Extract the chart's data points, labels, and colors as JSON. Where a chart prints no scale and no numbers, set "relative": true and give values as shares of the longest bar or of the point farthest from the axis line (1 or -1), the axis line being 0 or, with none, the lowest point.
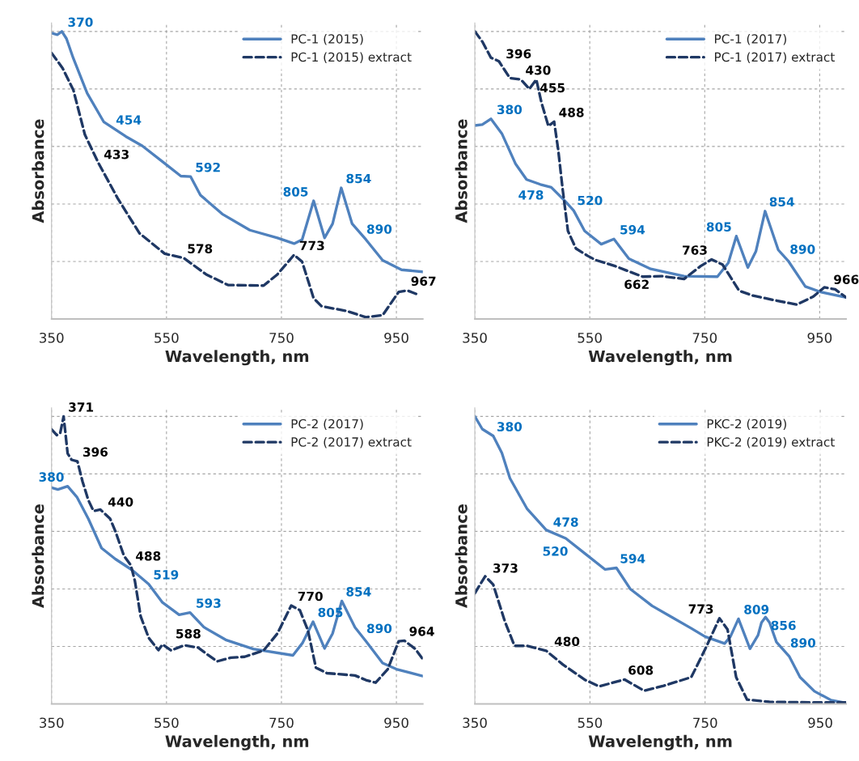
{
  "chart_data": [
    {
      "type": "line",
      "relative": true,
      "xlabel": "Wavelength, nm",
      "ylabel": "Absorbance",
      "xlim": [
        350,
        996
      ],
      "xticks": [
        350,
        550,
        750,
        950
      ],
      "grid": true,
      "legend": "top right",
      "series": [
        {
          "name": "PC-1 (2015)",
          "color": "#4f81bd",
          "line_style": "solid",
          "x": [
            350,
            360,
            368,
            376,
            388,
            412,
            441,
            479,
            508,
            547,
            575,
            592,
            609,
            647,
            695,
            743,
            772,
            786,
            806,
            825,
            839,
            854,
            873,
            897,
            926,
            959,
            996
          ],
          "values": [
            0.994,
            0.989,
            1.0,
            0.975,
            0.906,
            0.785,
            0.685,
            0.635,
            0.602,
            0.541,
            0.497,
            0.495,
            0.431,
            0.365,
            0.309,
            0.282,
            0.262,
            0.276,
            0.411,
            0.282,
            0.331,
            0.456,
            0.331,
            0.276,
            0.204,
            0.171,
            0.164
          ]
        },
        {
          "name": "PC-1 (2015) extract",
          "color": "#1f3864",
          "line_style": "dashed",
          "x": [
            350,
            369,
            388,
            408,
            432,
            465,
            503,
            547,
            580,
            619,
            657,
            719,
            743,
            772,
            786,
            806,
            820,
            863,
            897,
            926,
            954,
            969,
            990
          ],
          "values": [
            0.925,
            0.873,
            0.796,
            0.641,
            0.541,
            0.42,
            0.298,
            0.227,
            0.212,
            0.155,
            0.118,
            0.116,
            0.155,
            0.223,
            0.199,
            0.072,
            0.044,
            0.028,
            0.006,
            0.013,
            0.094,
            0.099,
            0.083
          ]
        }
      ],
      "annotations": [
        {
          "text": "370",
          "x": 370,
          "y": 1.0
        },
        {
          "text": "454",
          "x": 454,
          "y": 0.66
        },
        {
          "text": "592",
          "x": 592,
          "y": 0.495
        },
        {
          "text": "805",
          "x": 805,
          "y": 0.41
        },
        {
          "text": "854",
          "x": 854,
          "y": 0.456
        },
        {
          "text": "890",
          "x": 890,
          "y": 0.28
        },
        {
          "text": "433",
          "x": 433,
          "y": 0.54
        },
        {
          "text": "578",
          "x": 578,
          "y": 0.212
        },
        {
          "text": "773",
          "x": 773,
          "y": 0.223
        },
        {
          "text": "967",
          "x": 967,
          "y": 0.099
        }
      ]
    },
    {
      "type": "line",
      "relative": true,
      "xlabel": "Wavelength, nm",
      "ylabel": "Absorbance",
      "xlim": [
        350,
        996
      ],
      "xticks": [
        350,
        550,
        750,
        950
      ],
      "grid": true,
      "legend": "top right",
      "series": [
        {
          "name": "PC-1 (2017)",
          "color": "#4f81bd",
          "line_style": "solid",
          "x": [
            350,
            363,
            378,
            397,
            421,
            440,
            464,
            483,
            507,
            522,
            541,
            570,
            592,
            618,
            656,
            714,
            772,
            791,
            805,
            825,
            839,
            855,
            878,
            896,
            925,
            953,
            996
          ],
          "values": [
            0.673,
            0.676,
            0.696,
            0.645,
            0.539,
            0.485,
            0.468,
            0.458,
            0.41,
            0.377,
            0.306,
            0.26,
            0.278,
            0.21,
            0.174,
            0.149,
            0.147,
            0.195,
            0.288,
            0.179,
            0.235,
            0.375,
            0.24,
            0.2,
            0.113,
            0.093,
            0.075
          ]
        },
        {
          "name": "PC-1 (2017) extract",
          "color": "#1f3864",
          "line_style": "dashed",
          "x": [
            350,
            363,
            378,
            392,
            411,
            430,
            445,
            457,
            466,
            478,
            488,
            495,
            503,
            512,
            526,
            546,
            560,
            594,
            642,
            675,
            714,
            743,
            762,
            781,
            810,
            834,
            872,
            910,
            939,
            958,
            977,
            996
          ],
          "values": [
            1.0,
            0.965,
            0.909,
            0.896,
            0.838,
            0.833,
            0.8,
            0.833,
            0.752,
            0.671,
            0.686,
            0.59,
            0.448,
            0.306,
            0.245,
            0.22,
            0.205,
            0.184,
            0.147,
            0.149,
            0.139,
            0.184,
            0.207,
            0.189,
            0.098,
            0.081,
            0.065,
            0.05,
            0.078,
            0.11,
            0.103,
            0.075
          ]
        }
      ],
      "annotations": [
        {
          "text": "396",
          "x": 396,
          "y": 0.89
        },
        {
          "text": "430",
          "x": 430,
          "y": 0.833
        },
        {
          "text": "455",
          "x": 455,
          "y": 0.833
        },
        {
          "text": "488",
          "x": 488,
          "y": 0.686
        },
        {
          "text": "662",
          "x": 662,
          "y": 0.149
        },
        {
          "text": "763",
          "x": 763,
          "y": 0.207
        },
        {
          "text": "966",
          "x": 966,
          "y": 0.105
        },
        {
          "text": "380",
          "x": 380,
          "y": 0.696
        },
        {
          "text": "478",
          "x": 478,
          "y": 0.46
        },
        {
          "text": "520",
          "x": 520,
          "y": 0.38
        },
        {
          "text": "594",
          "x": 594,
          "y": 0.278
        },
        {
          "text": "805",
          "x": 805,
          "y": 0.288
        },
        {
          "text": "854",
          "x": 854,
          "y": 0.375
        },
        {
          "text": "890",
          "x": 890,
          "y": 0.21
        }
      ]
    },
    {
      "type": "line",
      "relative": true,
      "xlabel": "Wavelength, nm",
      "ylabel": "Absorbance",
      "xlim": [
        350,
        996
      ],
      "xticks": [
        350,
        550,
        750,
        950
      ],
      "grid": true,
      "legend": "top right",
      "series": [
        {
          "name": "PC-2 (2017)",
          "color": "#4f81bd",
          "line_style": "solid",
          "x": [
            350,
            361,
            378,
            394,
            414,
            437,
            461,
            490,
            519,
            543,
            572,
            591,
            615,
            653,
            701,
            770,
            787,
            805,
            825,
            839,
            855,
            878,
            897,
            926,
            950,
            996
          ],
          "values": [
            0.752,
            0.746,
            0.757,
            0.72,
            0.644,
            0.542,
            0.504,
            0.466,
            0.417,
            0.353,
            0.31,
            0.318,
            0.267,
            0.223,
            0.191,
            0.169,
            0.213,
            0.286,
            0.193,
            0.245,
            0.358,
            0.266,
            0.218,
            0.142,
            0.121,
            0.097
          ]
        },
        {
          "name": "PC-2 (2017) extract",
          "color": "#1f3864",
          "line_style": "dashed",
          "x": [
            350,
            359,
            365,
            371,
            378,
            385,
            395,
            404,
            414,
            423,
            435,
            452,
            461,
            476,
            488,
            495,
            505,
            519,
            536,
            543,
            558,
            581,
            605,
            619,
            638,
            662,
            686,
            719,
            743,
            767,
            782,
            796,
            810,
            829,
            878,
            897,
            914,
            935,
            954,
            964,
            983,
            996
          ],
          "values": [
            0.955,
            0.935,
            0.941,
            1.0,
            0.871,
            0.849,
            0.844,
            0.773,
            0.709,
            0.671,
            0.676,
            0.644,
            0.601,
            0.515,
            0.482,
            0.428,
            0.305,
            0.23,
            0.187,
            0.207,
            0.186,
            0.204,
            0.196,
            0.175,
            0.148,
            0.161,
            0.164,
            0.186,
            0.245,
            0.342,
            0.326,
            0.256,
            0.126,
            0.107,
            0.099,
            0.083,
            0.074,
            0.121,
            0.218,
            0.22,
            0.191,
            0.156
          ]
        }
      ],
      "annotations": [
        {
          "text": "371",
          "x": 371,
          "y": 1.0
        },
        {
          "text": "396",
          "x": 396,
          "y": 0.844
        },
        {
          "text": "440",
          "x": 440,
          "y": 0.67
        },
        {
          "text": "488",
          "x": 488,
          "y": 0.482
        },
        {
          "text": "588",
          "x": 588,
          "y": 0.2
        },
        {
          "text": "770",
          "x": 770,
          "y": 0.342
        },
        {
          "text": "964",
          "x": 964,
          "y": 0.22
        },
        {
          "text": "380",
          "x": 380,
          "y": 0.757
        },
        {
          "text": "519",
          "x": 519,
          "y": 0.417
        },
        {
          "text": "593",
          "x": 593,
          "y": 0.318
        },
        {
          "text": "805",
          "x": 805,
          "y": 0.286
        },
        {
          "text": "854",
          "x": 854,
          "y": 0.358
        },
        {
          "text": "890",
          "x": 890,
          "y": 0.23
        }
      ]
    },
    {
      "type": "line",
      "relative": true,
      "xlabel": "Wavelength, nm",
      "ylabel": "Absorbance",
      "xlim": [
        350,
        995
      ],
      "xticks": [
        350,
        550,
        750,
        950
      ],
      "grid": true,
      "legend": "top right",
      "series": [
        {
          "name": "PKC-2 (2019)",
          "color": "#4f81bd",
          "line_style": "solid",
          "x": [
            350,
            363,
            382,
            397,
            411,
            441,
            474,
            508,
            542,
            576,
            596,
            620,
            658,
            692,
            726,
            750,
            784,
            794,
            808,
            828,
            842,
            848,
            855,
            862,
            874,
            896,
            915,
            940,
            969,
            995
          ],
          "values": [
            1.0,
            0.956,
            0.932,
            0.873,
            0.785,
            0.678,
            0.605,
            0.576,
            0.522,
            0.468,
            0.473,
            0.4,
            0.341,
            0.302,
            0.263,
            0.234,
            0.21,
            0.234,
            0.296,
            0.192,
            0.239,
            0.283,
            0.302,
            0.283,
            0.215,
            0.166,
            0.093,
            0.044,
            0.013,
            0.003
          ]
        },
        {
          "name": "PKC-2 (2019) extract",
          "color": "#1f3864",
          "line_style": "dashed",
          "x": [
            350,
            368,
            382,
            402,
            419,
            441,
            474,
            503,
            542,
            566,
            610,
            644,
            678,
            726,
            750,
            775,
            789,
            804,
            823,
            862,
            949,
            995
          ],
          "values": [
            0.385,
            0.444,
            0.415,
            0.288,
            0.202,
            0.202,
            0.185,
            0.137,
            0.083,
            0.061,
            0.085,
            0.046,
            0.063,
            0.093,
            0.19,
            0.298,
            0.259,
            0.093,
            0.015,
            0.007,
            0.005,
            0.005
          ]
        }
      ],
      "annotations": [
        {
          "text": "380",
          "x": 380,
          "y": 0.932
        },
        {
          "text": "478",
          "x": 478,
          "y": 0.6
        },
        {
          "text": "520",
          "x": 520,
          "y": 0.56
        },
        {
          "text": "594",
          "x": 594,
          "y": 0.473
        },
        {
          "text": "809",
          "x": 809,
          "y": 0.296
        },
        {
          "text": "856",
          "x": 856,
          "y": 0.302
        },
        {
          "text": "890",
          "x": 890,
          "y": 0.18
        },
        {
          "text": "373",
          "x": 373,
          "y": 0.44
        },
        {
          "text": "480",
          "x": 480,
          "y": 0.185
        },
        {
          "text": "608",
          "x": 608,
          "y": 0.085
        },
        {
          "text": "773",
          "x": 773,
          "y": 0.298
        }
      ]
    }
  ]
}
